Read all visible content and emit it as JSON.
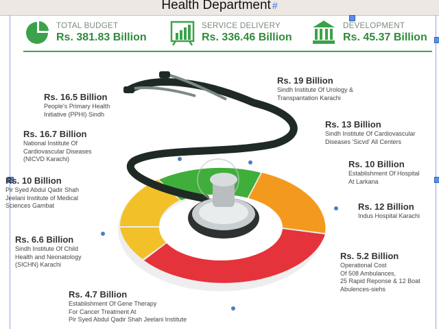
{
  "header": {
    "title": "Health Department",
    "title_mark": "#"
  },
  "stats": [
    {
      "label": "TOTAL BUDGET",
      "value": "Rs. 381.83 Billion",
      "icon": "pie-chart-icon"
    },
    {
      "label": "SERVICE DELIVERY",
      "value": "Rs. 336.46 Billion",
      "icon": "bar-chart-icon"
    },
    {
      "label": "DEVELOPMENT",
      "value": "Rs. 45.37 Billion",
      "icon": "building-icon"
    }
  ],
  "left_items": [
    {
      "amount": "Rs. 16.5 Billion",
      "lines": [
        "People's Primary Health",
        "Initiative (PPHI) Sindh"
      ]
    },
    {
      "amount": "Rs. 16.7 Billion",
      "lines": [
        "National Institute Of",
        "Cardiovascular Diseases",
        "(NICVD Karachi)"
      ]
    },
    {
      "amount": "Rs. 10 Billion",
      "lines": [
        "Pir Syed Abdul Qadir Shah",
        "Jeelani Institute of Medical",
        "Sciences Gambat"
      ]
    },
    {
      "amount": "Rs. 6.6 Billion",
      "lines": [
        "Sindh Institute Of Child",
        "Health and Neonatology",
        "(SICHN) Karachi"
      ]
    },
    {
      "amount": "Rs. 4.7 Billion",
      "lines": [
        "Establishment Of Gene  Therapy",
        "For Cancer Treatment At",
        "Pir Syed Abdul Qadir Shah Jeelani Institute"
      ]
    }
  ],
  "right_items": [
    {
      "amount": "Rs. 19 Billion",
      "lines": [
        "Sindh Institute Of Urology &",
        "Transpantation Karachi"
      ]
    },
    {
      "amount": "Rs. 13 Billion",
      "lines": [
        "Sindh Institute Of Cardiovascular",
        "Diseases 'Sicvd' All Centers"
      ]
    },
    {
      "amount": "Rs. 10 Billion",
      "lines": [
        "Establishment Of Hospital",
        "At Larkana"
      ]
    },
    {
      "amount": "Rs. 12 Billion",
      "lines": [
        "Indus Hospital Karachi"
      ]
    },
    {
      "amount": "Rs. 5.2 Billion",
      "lines": [
        "Operational Cost",
        "Of 508 Ambulances,",
        "25 Rapid Reponse & 12 Boat",
        "Abulences-siehs"
      ]
    }
  ],
  "colors": {
    "accent_green": "#2f8b3a",
    "segment_green": "#3fae3a",
    "segment_orange": "#f39a1e",
    "segment_red": "#e5333b",
    "segment_yellow": "#f2c12a"
  }
}
